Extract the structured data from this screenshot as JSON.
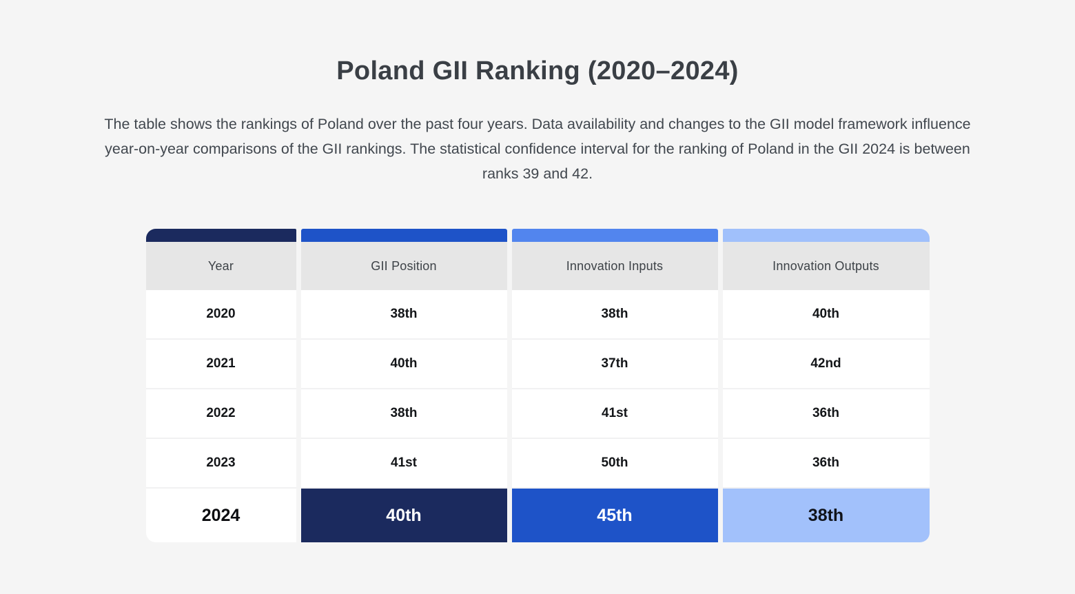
{
  "page": {
    "title": "Poland GII Ranking (2020–2024)",
    "description": "The table shows the rankings of Poland over the past four years. Data availability and changes to the GII model framework influence year-on-year comparisons of the GII rankings. The statistical confidence interval for the ranking of Poland in the GII 2024 is between ranks 39 and 42."
  },
  "colors": {
    "page_bg": "#f5f5f5",
    "header_bg": "#e6e6e6",
    "strip_year": "#1b2a5e",
    "strip_gii": "#1e53c8",
    "strip_inputs": "#5285ee",
    "strip_outputs": "#a0c0fb",
    "highlight_gii_bg": "#1b2a5e",
    "highlight_inputs_bg": "#1e53c8",
    "highlight_outputs_bg": "#a2c1fb"
  },
  "table": {
    "headers": [
      {
        "label": "Year"
      },
      {
        "label": "GII Position"
      },
      {
        "label": "Innovation Inputs"
      },
      {
        "label": "Innovation Outputs"
      }
    ],
    "rows": [
      {
        "cells": [
          "2020",
          "38th",
          "38th",
          "40th"
        ]
      },
      {
        "cells": [
          "2021",
          "40th",
          "37th",
          "42nd"
        ]
      },
      {
        "cells": [
          "2022",
          "38th",
          "41st",
          "36th"
        ]
      },
      {
        "cells": [
          "2023",
          "41st",
          "50th",
          "36th"
        ]
      }
    ],
    "highlight": {
      "cells": [
        "2024",
        "40th",
        "45th",
        "38th"
      ]
    }
  },
  "chart_data": {
    "type": "table",
    "title": "Poland GII Ranking (2020–2024)",
    "columns": [
      "Year",
      "GII Position",
      "Innovation Inputs",
      "Innovation Outputs"
    ],
    "rows": [
      [
        "2020",
        "38th",
        "38th",
        "40th"
      ],
      [
        "2021",
        "40th",
        "37th",
        "42nd"
      ],
      [
        "2022",
        "38th",
        "41st",
        "36th"
      ],
      [
        "2023",
        "41st",
        "50th",
        "36th"
      ],
      [
        "2024",
        "40th",
        "45th",
        "38th"
      ]
    ],
    "highlighted_row": "2024",
    "notes": "Confidence interval for Poland in GII 2024 is between ranks 39 and 42"
  }
}
